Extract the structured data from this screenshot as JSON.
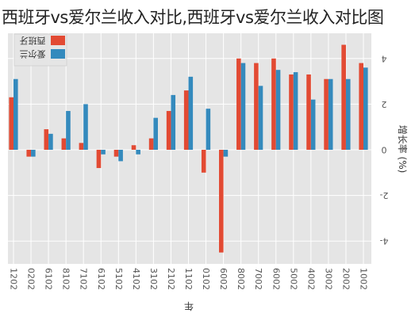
{
  "title": "西班牙vs爱尔兰收入对比,西班牙vs爱尔兰收入对比图",
  "chart_data": {
    "type": "bar",
    "orientation": "rotated-180",
    "title": "西班牙vs爱尔兰收入对比,西班牙vs爱尔兰收入对比图",
    "xlabel": "年",
    "ylabel": "增长率 (%)",
    "categories": [
      "2001",
      "2002",
      "2003",
      "2004",
      "2005",
      "2006",
      "2007",
      "2008",
      "2009",
      "2010",
      "2011",
      "2012",
      "2013",
      "2014",
      "2015",
      "2016",
      "2017",
      "2018",
      "2019",
      "2020",
      "2021"
    ],
    "category_labels": [
      "1002",
      "2002",
      "3002",
      "4002",
      "5002",
      "6002",
      "7002",
      "8002",
      "6002",
      "0102",
      "1102",
      "2102",
      "3102",
      "4102",
      "5102",
      "6102",
      "7102",
      "8102",
      "6102",
      "0202",
      "1202"
    ],
    "series": [
      {
        "name": "西班牙",
        "color": "#e24a33",
        "values": [
          3.8,
          4.6,
          3.1,
          3.3,
          3.3,
          4.0,
          3.8,
          4.0,
          -4.5,
          -1.0,
          2.6,
          1.7,
          0.5,
          0.2,
          -0.3,
          -0.8,
          0.3,
          0.5,
          0.9,
          -0.3,
          2.3
        ]
      },
      {
        "name": "爱尔兰",
        "color": "#348abd",
        "values": [
          3.6,
          3.1,
          3.1,
          2.2,
          3.4,
          3.5,
          2.8,
          3.8,
          -0.3,
          1.8,
          3.2,
          2.4,
          1.4,
          -0.2,
          -0.5,
          -0.2,
          2.0,
          1.7,
          0.7,
          -0.3,
          3.1
        ]
      }
    ],
    "ylim": [
      -4.8,
      4.8
    ],
    "yticks": [
      -4,
      -2,
      0,
      2,
      4
    ],
    "ytick_labels": [
      "4-",
      "2-",
      "0",
      "2",
      "4"
    ],
    "grid": true,
    "legend_position": "top-left",
    "legend_entries": [
      "西班牙",
      "爱尔兰"
    ]
  }
}
